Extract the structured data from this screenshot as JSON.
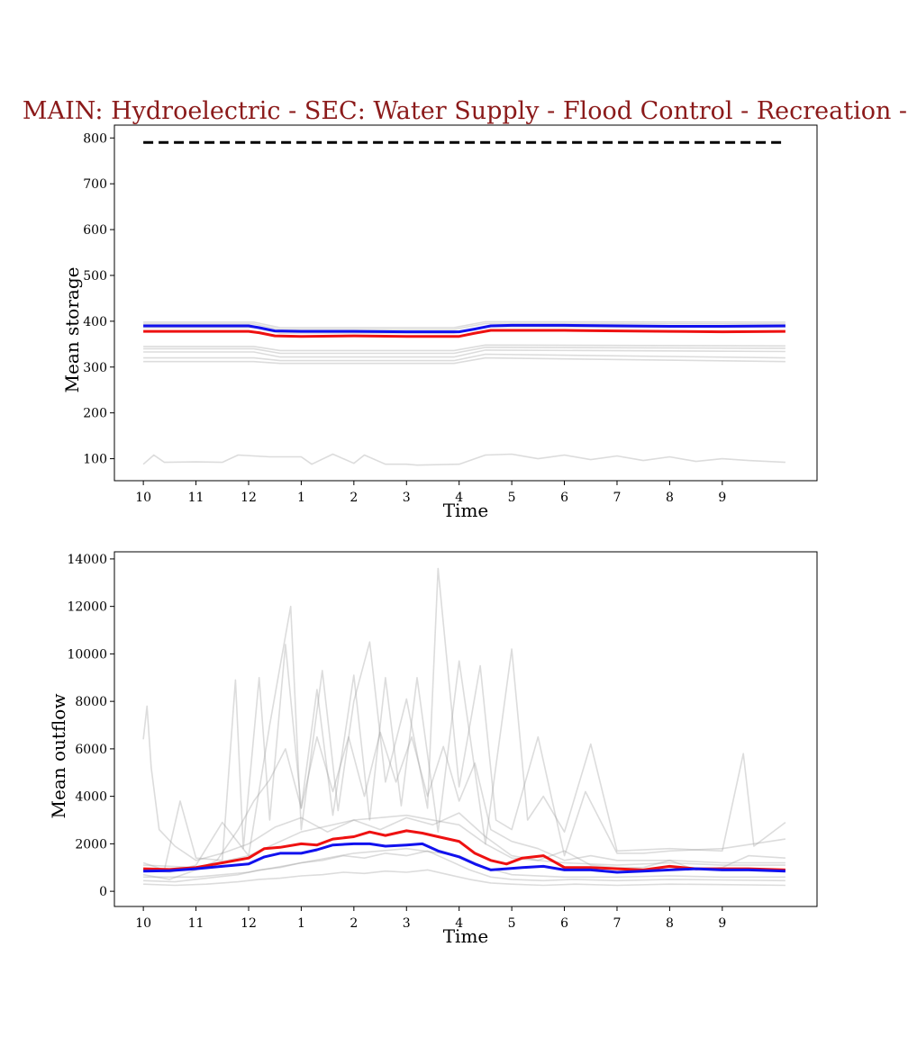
{
  "figure_title": "MAIN: Hydroelectric - SEC: Water Supply - Flood Control - Recreation -",
  "colors": {
    "title": "#8b1a1a",
    "red_series": "#ee1111",
    "blue_series": "#1111ee",
    "ensemble": "#9a9a9a",
    "reference": "#000000"
  },
  "chart_data": [
    {
      "type": "line",
      "panel": "storage",
      "ylabel": "Mean storage",
      "xlabel": "Time",
      "xlim": [
        -0.55,
        12.8
      ],
      "ylim": [
        52,
        828
      ],
      "yticks": [
        100,
        200,
        300,
        400,
        500,
        600,
        700,
        800
      ],
      "xticks": [
        0,
        1,
        2,
        3,
        4,
        5,
        6,
        7,
        8,
        9,
        10,
        11
      ],
      "xtick_labels": [
        "10",
        "11",
        "12",
        "1",
        "2",
        "3",
        "4",
        "5",
        "6",
        "7",
        "8",
        "9"
      ],
      "grid": false,
      "series": [
        {
          "role": "reference",
          "color": "#000000",
          "dashed": true,
          "x": [
            0,
            12.2
          ],
          "y": [
            790,
            790
          ]
        },
        {
          "role": "red",
          "color": "#ee1111",
          "x": [
            0,
            1,
            2,
            2.2,
            2.5,
            3,
            4,
            5,
            6,
            6.3,
            6.6,
            7,
            8,
            9,
            10,
            11,
            12.2
          ],
          "y": [
            378,
            378,
            378,
            375,
            368,
            367,
            368,
            367,
            367,
            374,
            380,
            380,
            380,
            379,
            378,
            377,
            378
          ]
        },
        {
          "role": "blue",
          "color": "#1111ee",
          "x": [
            0,
            1,
            2,
            2.2,
            2.5,
            3,
            4,
            5,
            6,
            6.3,
            6.6,
            7,
            8,
            9,
            10,
            11,
            12.2
          ],
          "y": [
            390,
            390,
            390,
            386,
            379,
            378,
            378,
            377,
            377,
            383,
            390,
            391,
            391,
            390,
            389,
            389,
            390
          ]
        }
      ],
      "ensemble_bands": [
        {
          "x": [
            0,
            2.1,
            2.6,
            5.9,
            6.5,
            12.2
          ],
          "y": [
            398,
            398,
            386,
            386,
            399,
            398
          ]
        },
        {
          "x": [
            0,
            2.1,
            2.6,
            5.9,
            6.5,
            12.2
          ],
          "y": [
            394,
            394,
            382,
            382,
            395,
            394
          ]
        },
        {
          "x": [
            0,
            2.1,
            2.6,
            5.9,
            6.5,
            12.2
          ],
          "y": [
            386,
            386,
            374,
            374,
            388,
            387
          ]
        },
        {
          "x": [
            0,
            2.1,
            2.6,
            5.9,
            6.5,
            12.2
          ],
          "y": [
            345,
            345,
            336,
            336,
            348,
            346
          ]
        },
        {
          "x": [
            0,
            2.1,
            2.6,
            5.9,
            6.5,
            12.2
          ],
          "y": [
            340,
            340,
            330,
            330,
            343,
            341
          ]
        },
        {
          "x": [
            0,
            2.1,
            2.6,
            5.9,
            6.5,
            12.2
          ],
          "y": [
            333,
            333,
            322,
            322,
            337,
            334
          ]
        },
        {
          "x": [
            0,
            2.1,
            2.6,
            5.9,
            6.5,
            12.2
          ],
          "y": [
            320,
            320,
            314,
            314,
            328,
            320
          ]
        },
        {
          "x": [
            0,
            2.1,
            2.6,
            5.9,
            6.5,
            12.2
          ],
          "y": [
            312,
            312,
            308,
            308,
            320,
            312
          ]
        },
        {
          "x": [
            0,
            0.2,
            0.4,
            1,
            1.5,
            1.8,
            2.4,
            3,
            3.2,
            3.6,
            4,
            4.2,
            4.6,
            5,
            5.2,
            6,
            6.5,
            7,
            7.5,
            8,
            8.5,
            9,
            9.5,
            10,
            10.5,
            11,
            11.5,
            12.2
          ],
          "y": [
            88,
            108,
            92,
            93,
            92,
            108,
            104,
            104,
            88,
            110,
            90,
            108,
            88,
            88,
            86,
            88,
            108,
            110,
            100,
            108,
            98,
            106,
            96,
            104,
            94,
            100,
            96,
            92
          ]
        }
      ]
    },
    {
      "type": "line",
      "panel": "outflow",
      "ylabel": "Mean outflow",
      "xlabel": "Time",
      "xlim": [
        -0.55,
        12.8
      ],
      "ylim": [
        -640,
        14300
      ],
      "yticks": [
        0,
        2000,
        4000,
        6000,
        8000,
        10000,
        12000,
        14000
      ],
      "xticks": [
        0,
        1,
        2,
        3,
        4,
        5,
        6,
        7,
        8,
        9,
        10,
        11
      ],
      "xtick_labels": [
        "10",
        "11",
        "12",
        "1",
        "2",
        "3",
        "4",
        "5",
        "6",
        "7",
        "8",
        "9"
      ],
      "grid": false,
      "series": [
        {
          "role": "red",
          "color": "#ee1111",
          "x": [
            0,
            0.5,
            1,
            1.5,
            2,
            2.3,
            2.6,
            3,
            3.3,
            3.6,
            4,
            4.3,
            4.6,
            5,
            5.3,
            5.6,
            6,
            6.3,
            6.6,
            6.9,
            7.2,
            7.6,
            8,
            8.5,
            9,
            9.5,
            10,
            10.5,
            11,
            11.5,
            12.2
          ],
          "y": [
            950,
            920,
            1000,
            1200,
            1400,
            1800,
            1850,
            2000,
            1950,
            2200,
            2300,
            2500,
            2350,
            2550,
            2450,
            2300,
            2100,
            1600,
            1300,
            1150,
            1400,
            1500,
            1000,
            1000,
            950,
            900,
            1050,
            950,
            950,
            950,
            900
          ]
        },
        {
          "role": "blue",
          "color": "#1111ee",
          "x": [
            0,
            0.5,
            1,
            1.5,
            2,
            2.3,
            2.6,
            3,
            3.3,
            3.6,
            4,
            4.3,
            4.6,
            5,
            5.3,
            5.6,
            6,
            6.3,
            6.6,
            6.9,
            7.2,
            7.6,
            8,
            8.5,
            9,
            9.5,
            10,
            10.5,
            11,
            11.5,
            12.2
          ],
          "y": [
            850,
            870,
            950,
            1050,
            1150,
            1450,
            1600,
            1600,
            1750,
            1950,
            2000,
            2000,
            1900,
            1950,
            2000,
            1700,
            1450,
            1150,
            900,
            950,
            1000,
            1050,
            900,
            900,
            800,
            850,
            900,
            950,
            900,
            900,
            850
          ]
        }
      ],
      "ensemble_bands": [
        {
          "x": [
            0,
            0.07,
            0.15,
            0.3,
            0.6,
            1,
            1.5,
            2,
            2.5,
            3,
            3.5,
            4,
            4.5,
            5,
            5.5,
            6,
            6.5,
            7,
            7.5,
            8,
            8.5,
            9,
            9.5,
            10,
            10.5,
            11,
            11.5,
            12.2
          ],
          "y": [
            6400,
            7800,
            5200,
            2600,
            1900,
            1300,
            1600,
            2000,
            2700,
            3100,
            2500,
            3000,
            2600,
            3100,
            2800,
            3300,
            2300,
            1500,
            1300,
            1700,
            1100,
            1000,
            1000,
            1300,
            900,
            1000,
            1500,
            1400
          ]
        },
        {
          "x": [
            0,
            0.4,
            0.7,
            1,
            1.5,
            1.75,
            1.9,
            2.2,
            2.4,
            2.7,
            3,
            3.3,
            3.6,
            4,
            4.3,
            4.6,
            4.9,
            5.2,
            5.6,
            6,
            6.5,
            7,
            7.3,
            7.6,
            8,
            8.5,
            9,
            10,
            11,
            11.4,
            11.6,
            12.2
          ],
          "y": [
            1200,
            900,
            3800,
            1400,
            1300,
            8900,
            1800,
            9000,
            3000,
            10400,
            3500,
            8500,
            3200,
            9100,
            3000,
            9000,
            3600,
            9000,
            2500,
            9700,
            2000,
            10200,
            3000,
            4000,
            2500,
            6200,
            1700,
            1800,
            1700,
            5800,
            1900,
            2900
          ]
        },
        {
          "x": [
            0,
            0.5,
            1,
            1.5,
            2,
            2.4,
            2.8,
            3,
            3.4,
            3.7,
            4,
            4.3,
            4.6,
            5,
            5.4,
            5.6,
            6,
            6.4,
            6.7,
            7,
            7.5,
            8,
            8.4,
            9,
            9.5,
            10,
            11,
            12.2
          ],
          "y": [
            900,
            800,
            1100,
            2900,
            1500,
            7000,
            12000,
            2600,
            9300,
            3400,
            8000,
            10500,
            4600,
            8100,
            3500,
            13600,
            4400,
            9500,
            3000,
            2600,
            6500,
            1500,
            4200,
            1600,
            1600,
            1700,
            1800,
            2200
          ]
        },
        {
          "x": [
            0,
            0.5,
            1,
            1.4,
            1.8,
            2.1,
            2.4,
            2.7,
            3,
            3.3,
            3.6,
            3.9,
            4.2,
            4.5,
            4.8,
            5.1,
            5.4,
            5.7,
            6,
            6.3,
            6.6,
            7,
            7.5,
            8,
            8.5,
            9,
            10,
            11,
            12.2
          ],
          "y": [
            700,
            500,
            900,
            1300,
            2600,
            3800,
            4700,
            6000,
            3500,
            6500,
            4200,
            6500,
            4000,
            6700,
            4600,
            6500,
            4000,
            6100,
            3800,
            5400,
            2600,
            2100,
            1800,
            1300,
            1500,
            1300,
            1300,
            1200,
            1200
          ]
        },
        {
          "x": [
            0,
            0.6,
            1.2,
            1.8,
            2.2,
            2.6,
            3,
            3.4,
            3.8,
            4.2,
            4.6,
            5,
            5.4,
            5.8,
            6.2,
            6.6,
            7,
            7.6,
            8.2,
            9,
            10,
            11,
            12.2
          ],
          "y": [
            450,
            400,
            550,
            700,
            900,
            1000,
            1200,
            1300,
            1500,
            1400,
            1600,
            1500,
            1700,
            1300,
            900,
            600,
            500,
            450,
            500,
            450,
            500,
            480,
            450
          ]
        },
        {
          "x": [
            0,
            0.6,
            1.2,
            1.8,
            2.2,
            2.6,
            3,
            3.4,
            3.8,
            4.2,
            4.6,
            5,
            5.4,
            5.8,
            6.2,
            6.6,
            7,
            7.6,
            8.2,
            9,
            10,
            11,
            12.2
          ],
          "y": [
            300,
            250,
            300,
            400,
            500,
            550,
            650,
            700,
            800,
            750,
            850,
            800,
            900,
            700,
            500,
            350,
            300,
            250,
            300,
            250,
            300,
            280,
            250
          ]
        },
        {
          "x": [
            0,
            1,
            2,
            3,
            4,
            5,
            6,
            6.5,
            7,
            8,
            9,
            10,
            11,
            12.2
          ],
          "y": [
            1100,
            1000,
            1500,
            2500,
            3000,
            3200,
            2800,
            2000,
            1400,
            1200,
            1100,
            1200,
            1100,
            1100
          ]
        },
        {
          "x": [
            0,
            1,
            2,
            3,
            4,
            5,
            6,
            6.5,
            7,
            8,
            9,
            10,
            11,
            12.2
          ],
          "y": [
            600,
            600,
            800,
            1200,
            1600,
            1800,
            1500,
            1000,
            700,
            600,
            600,
            650,
            600,
            600
          ]
        }
      ]
    }
  ]
}
